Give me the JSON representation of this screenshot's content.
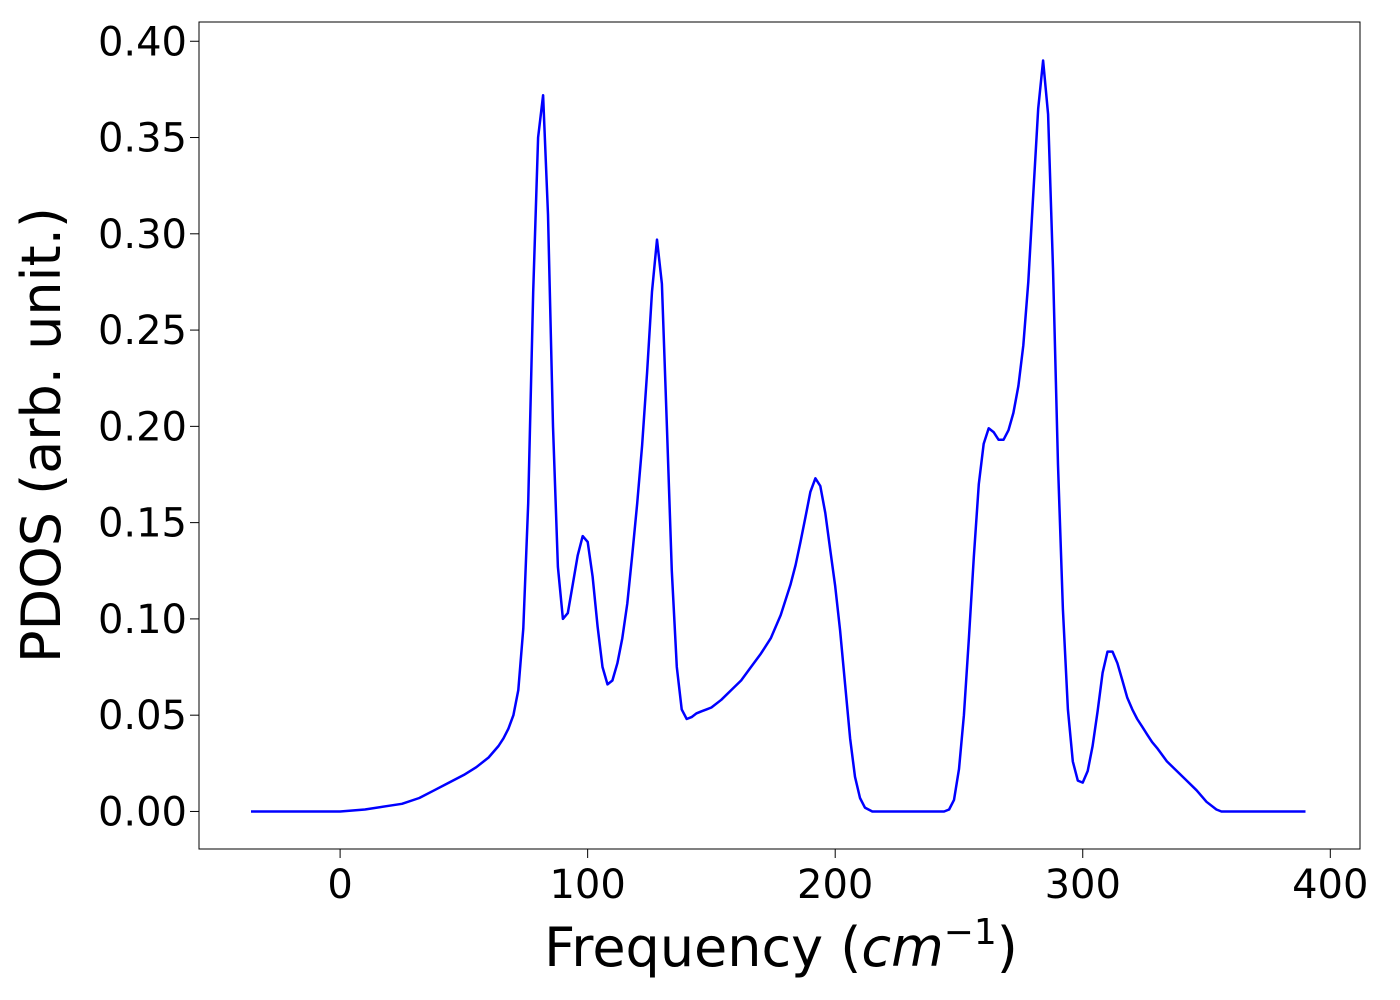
{
  "chart_data": {
    "type": "line",
    "xlabel_prefix": "Frequency (",
    "xlabel_unit": "cm",
    "xlabel_exponent": "−1",
    "xlabel_suffix": ")",
    "ylabel": "PDOS (arb. unit.)",
    "xlim": [
      -57,
      412
    ],
    "ylim": [
      -0.0195,
      0.41
    ],
    "xticks": [
      0,
      100,
      200,
      300,
      400
    ],
    "xtick_labels": [
      "0",
      "100",
      "200",
      "300",
      "400"
    ],
    "yticks": [
      0.0,
      0.05,
      0.1,
      0.15,
      0.2,
      0.25,
      0.3,
      0.35,
      0.4
    ],
    "ytick_labels": [
      "0.00",
      "0.05",
      "0.10",
      "0.15",
      "0.20",
      "0.25",
      "0.30",
      "0.35",
      "0.40"
    ],
    "grid": false,
    "series": [
      {
        "color": "#0000ff",
        "x": [
          -36,
          -20,
          0,
          10,
          20,
          25,
          32,
          38,
          44,
          50,
          55,
          60,
          64,
          66,
          68,
          70,
          72,
          74,
          76,
          78,
          80,
          82,
          84,
          86,
          88,
          90,
          92,
          94,
          96,
          98,
          100,
          102,
          104,
          106,
          108,
          110,
          112,
          114,
          116,
          118,
          120,
          122,
          124,
          126,
          128,
          130,
          132,
          134,
          136,
          138,
          140,
          142,
          144,
          146,
          148,
          150,
          154,
          158,
          162,
          166,
          170,
          174,
          178,
          182,
          184,
          186,
          188,
          190,
          192,
          194,
          196,
          198,
          200,
          202,
          204,
          206,
          208,
          210,
          212,
          215,
          220,
          230,
          240,
          244,
          246,
          248,
          250,
          252,
          254,
          256,
          258,
          260,
          262,
          264,
          266,
          268,
          270,
          272,
          274,
          276,
          278,
          280,
          282,
          284,
          286,
          288,
          290,
          292,
          294,
          296,
          298,
          300,
          302,
          304,
          306,
          308,
          310,
          312,
          314,
          316,
          318,
          320,
          322,
          324,
          326,
          328,
          330,
          334,
          338,
          342,
          346,
          350,
          354,
          356,
          358,
          360,
          364,
          370,
          380,
          390
        ],
        "y": [
          0.0,
          0.0,
          0.0,
          0.001,
          0.003,
          0.004,
          0.007,
          0.011,
          0.015,
          0.019,
          0.023,
          0.028,
          0.034,
          0.038,
          0.043,
          0.05,
          0.063,
          0.095,
          0.16,
          0.27,
          0.35,
          0.372,
          0.31,
          0.2,
          0.127,
          0.1,
          0.103,
          0.118,
          0.133,
          0.143,
          0.14,
          0.122,
          0.096,
          0.075,
          0.066,
          0.068,
          0.077,
          0.09,
          0.108,
          0.133,
          0.16,
          0.19,
          0.228,
          0.27,
          0.297,
          0.274,
          0.2,
          0.125,
          0.075,
          0.053,
          0.048,
          0.049,
          0.051,
          0.052,
          0.053,
          0.054,
          0.058,
          0.063,
          0.068,
          0.075,
          0.082,
          0.09,
          0.102,
          0.118,
          0.128,
          0.14,
          0.153,
          0.166,
          0.173,
          0.169,
          0.155,
          0.136,
          0.117,
          0.094,
          0.066,
          0.038,
          0.018,
          0.007,
          0.002,
          0.0,
          0.0,
          0.0,
          0.0,
          0.0,
          0.001,
          0.006,
          0.022,
          0.05,
          0.09,
          0.132,
          0.17,
          0.191,
          0.199,
          0.197,
          0.193,
          0.193,
          0.198,
          0.207,
          0.221,
          0.242,
          0.275,
          0.32,
          0.365,
          0.39,
          0.362,
          0.282,
          0.18,
          0.105,
          0.053,
          0.026,
          0.016,
          0.015,
          0.021,
          0.034,
          0.052,
          0.072,
          0.083,
          0.083,
          0.077,
          0.068,
          0.059,
          0.053,
          0.048,
          0.044,
          0.04,
          0.036,
          0.033,
          0.026,
          0.021,
          0.016,
          0.011,
          0.005,
          0.001,
          0.0,
          0.0,
          0.0,
          0.0,
          0.0,
          0.0,
          0.0
        ]
      }
    ]
  }
}
